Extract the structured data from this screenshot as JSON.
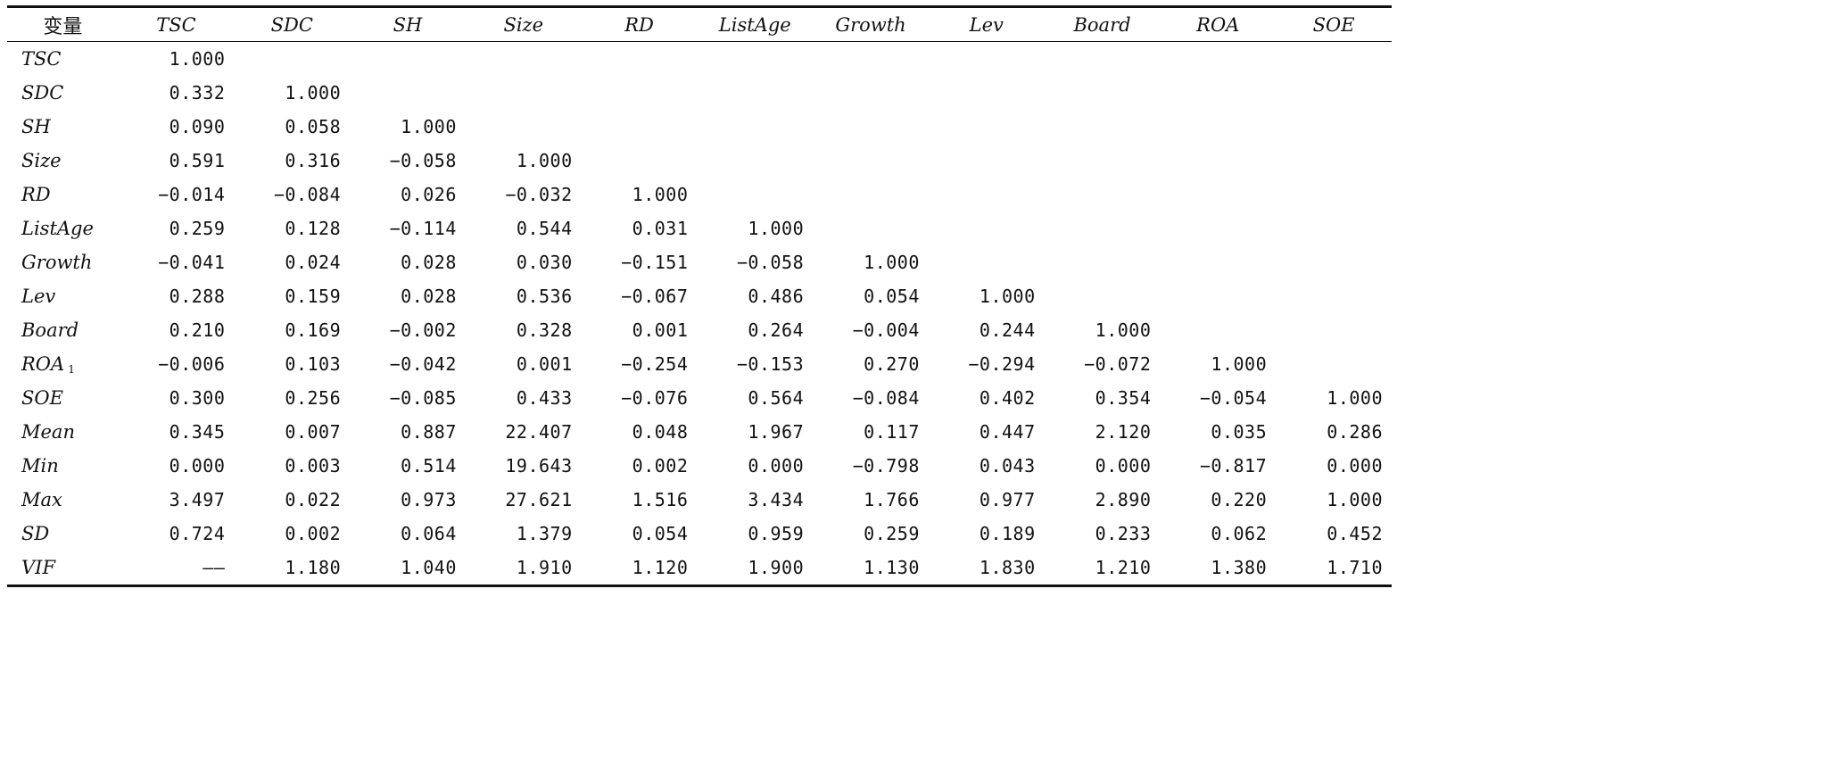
{
  "table": {
    "headers": [
      "变量",
      "TSC",
      "SDC",
      "SH",
      "Size",
      "RD",
      "ListAge",
      "Growth",
      "Lev",
      "Board",
      "ROA",
      "SOE"
    ],
    "rows": [
      {
        "label": "TSC",
        "sub": "",
        "cells": [
          "1.000",
          "",
          "",
          "",
          "",
          "",
          "",
          "",
          "",
          "",
          ""
        ]
      },
      {
        "label": "SDC",
        "sub": "",
        "cells": [
          "0.332",
          "1.000",
          "",
          "",
          "",
          "",
          "",
          "",
          "",
          "",
          ""
        ]
      },
      {
        "label": "SH",
        "sub": "",
        "cells": [
          "0.090",
          "0.058",
          "1.000",
          "",
          "",
          "",
          "",
          "",
          "",
          "",
          ""
        ]
      },
      {
        "label": "Size",
        "sub": "",
        "cells": [
          "0.591",
          "0.316",
          "−0.058",
          "1.000",
          "",
          "",
          "",
          "",
          "",
          "",
          ""
        ]
      },
      {
        "label": "RD",
        "sub": "",
        "cells": [
          "−0.014",
          "−0.084",
          "0.026",
          "−0.032",
          "1.000",
          "",
          "",
          "",
          "",
          "",
          ""
        ]
      },
      {
        "label": "ListAge",
        "sub": "",
        "cells": [
          "0.259",
          "0.128",
          "−0.114",
          "0.544",
          "0.031",
          "1.000",
          "",
          "",
          "",
          "",
          ""
        ]
      },
      {
        "label": "Growth",
        "sub": "",
        "cells": [
          "−0.041",
          "0.024",
          "0.028",
          "0.030",
          "−0.151",
          "−0.058",
          "1.000",
          "",
          "",
          "",
          ""
        ]
      },
      {
        "label": "Lev",
        "sub": "",
        "cells": [
          "0.288",
          "0.159",
          "0.028",
          "0.536",
          "−0.067",
          "0.486",
          "0.054",
          "1.000",
          "",
          "",
          ""
        ]
      },
      {
        "label": "Board",
        "sub": "",
        "cells": [
          "0.210",
          "0.169",
          "−0.002",
          "0.328",
          "0.001",
          "0.264",
          "−0.004",
          "0.244",
          "1.000",
          "",
          ""
        ]
      },
      {
        "label": "ROA",
        "sub": "1",
        "cells": [
          "−0.006",
          "0.103",
          "−0.042",
          "0.001",
          "−0.254",
          "−0.153",
          "0.270",
          "−0.294",
          "−0.072",
          "1.000",
          ""
        ]
      },
      {
        "label": "SOE",
        "sub": "",
        "cells": [
          "0.300",
          "0.256",
          "−0.085",
          "0.433",
          "−0.076",
          "0.564",
          "−0.084",
          "0.402",
          "0.354",
          "−0.054",
          "1.000"
        ]
      },
      {
        "label": "Mean",
        "sub": "",
        "cells": [
          "0.345",
          "0.007",
          "0.887",
          "22.407",
          "0.048",
          "1.967",
          "0.117",
          "0.447",
          "2.120",
          "0.035",
          "0.286"
        ]
      },
      {
        "label": "Min",
        "sub": "",
        "cells": [
          "0.000",
          "0.003",
          "0.514",
          "19.643",
          "0.002",
          "0.000",
          "−0.798",
          "0.043",
          "0.000",
          "−0.817",
          "0.000"
        ]
      },
      {
        "label": "Max",
        "sub": "",
        "cells": [
          "3.497",
          "0.022",
          "0.973",
          "27.621",
          "1.516",
          "3.434",
          "1.766",
          "0.977",
          "2.890",
          "0.220",
          "1.000"
        ]
      },
      {
        "label": "SD",
        "sub": "",
        "cells": [
          "0.724",
          "0.002",
          "0.064",
          "1.379",
          "0.054",
          "0.959",
          "0.259",
          "0.189",
          "0.233",
          "0.062",
          "0.452"
        ]
      },
      {
        "label": "VIF",
        "sub": "",
        "cells": [
          "——",
          "1.180",
          "1.040",
          "1.910",
          "1.120",
          "1.900",
          "1.130",
          "1.830",
          "1.210",
          "1.380",
          "1.710"
        ]
      }
    ]
  }
}
